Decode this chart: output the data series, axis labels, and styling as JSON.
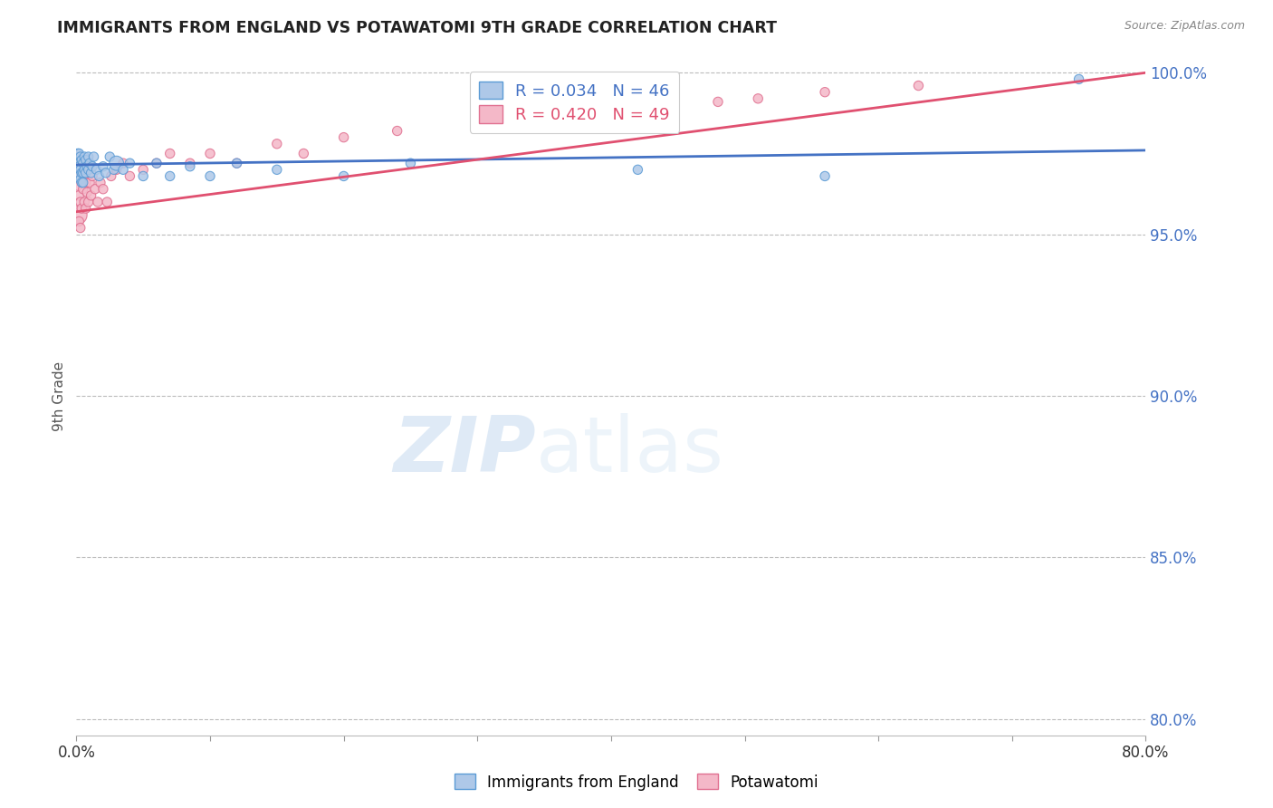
{
  "title": "IMMIGRANTS FROM ENGLAND VS POTAWATOMI 9TH GRADE CORRELATION CHART",
  "source_text": "Source: ZipAtlas.com",
  "ylabel": "9th Grade",
  "legend_blue_label": "Immigrants from England",
  "legend_pink_label": "Potawatomi",
  "R_blue": 0.034,
  "N_blue": 46,
  "R_pink": 0.42,
  "N_pink": 49,
  "xlim": [
    0.0,
    0.8
  ],
  "ylim": [
    0.795,
    1.005
  ],
  "xticks": [
    0.0,
    0.1,
    0.2,
    0.3,
    0.4,
    0.5,
    0.6,
    0.7,
    0.8
  ],
  "xticklabels": [
    "0.0%",
    "",
    "",
    "",
    "",
    "",
    "",
    "",
    "80.0%"
  ],
  "yticks": [
    0.8,
    0.85,
    0.9,
    0.95,
    1.0
  ],
  "yticklabels": [
    "80.0%",
    "85.0%",
    "90.0%",
    "95.0%",
    "100.0%"
  ],
  "blue_color": "#aec8e8",
  "pink_color": "#f4b8c8",
  "blue_edge_color": "#5b9bd5",
  "pink_edge_color": "#e07090",
  "blue_line_color": "#4472c4",
  "pink_line_color": "#e05070",
  "watermark_zip": "ZIP",
  "watermark_atlas": "atlas",
  "background_color": "#ffffff",
  "grid_color": "#bbbbbb",
  "blue_scatter_x": [
    0.001,
    0.001,
    0.002,
    0.002,
    0.002,
    0.003,
    0.003,
    0.003,
    0.004,
    0.004,
    0.004,
    0.005,
    0.005,
    0.005,
    0.006,
    0.006,
    0.007,
    0.007,
    0.008,
    0.009,
    0.009,
    0.01,
    0.011,
    0.012,
    0.013,
    0.015,
    0.017,
    0.02,
    0.022,
    0.025,
    0.028,
    0.03,
    0.035,
    0.04,
    0.05,
    0.06,
    0.07,
    0.085,
    0.1,
    0.12,
    0.15,
    0.2,
    0.25,
    0.42,
    0.56,
    0.75
  ],
  "blue_scatter_y": [
    0.975,
    0.972,
    0.975,
    0.971,
    0.968,
    0.974,
    0.97,
    0.967,
    0.973,
    0.969,
    0.966,
    0.972,
    0.969,
    0.966,
    0.974,
    0.97,
    0.973,
    0.969,
    0.971,
    0.974,
    0.97,
    0.972,
    0.969,
    0.971,
    0.974,
    0.97,
    0.968,
    0.971,
    0.969,
    0.974,
    0.97,
    0.972,
    0.97,
    0.972,
    0.968,
    0.972,
    0.968,
    0.971,
    0.968,
    0.972,
    0.97,
    0.968,
    0.972,
    0.97,
    0.968,
    0.998
  ],
  "blue_scatter_sizes": [
    55,
    55,
    55,
    55,
    55,
    55,
    55,
    55,
    55,
    55,
    55,
    55,
    55,
    55,
    55,
    55,
    55,
    55,
    55,
    55,
    55,
    55,
    55,
    55,
    55,
    55,
    55,
    55,
    55,
    55,
    55,
    130,
    55,
    55,
    55,
    55,
    55,
    55,
    55,
    55,
    55,
    55,
    55,
    55,
    55,
    55
  ],
  "pink_scatter_x": [
    0.001,
    0.001,
    0.001,
    0.002,
    0.002,
    0.002,
    0.003,
    0.003,
    0.003,
    0.004,
    0.004,
    0.005,
    0.005,
    0.006,
    0.006,
    0.007,
    0.007,
    0.008,
    0.009,
    0.01,
    0.011,
    0.012,
    0.014,
    0.016,
    0.018,
    0.02,
    0.023,
    0.026,
    0.03,
    0.035,
    0.04,
    0.05,
    0.06,
    0.07,
    0.085,
    0.1,
    0.12,
    0.15,
    0.17,
    0.2,
    0.24,
    0.3,
    0.35,
    0.39,
    0.44,
    0.48,
    0.51,
    0.56,
    0.63
  ],
  "pink_scatter_y": [
    0.974,
    0.965,
    0.956,
    0.97,
    0.962,
    0.954,
    0.968,
    0.96,
    0.952,
    0.966,
    0.958,
    0.972,
    0.964,
    0.968,
    0.96,
    0.966,
    0.958,
    0.963,
    0.96,
    0.966,
    0.962,
    0.968,
    0.964,
    0.96,
    0.966,
    0.964,
    0.96,
    0.968,
    0.97,
    0.972,
    0.968,
    0.97,
    0.972,
    0.975,
    0.972,
    0.975,
    0.972,
    0.978,
    0.975,
    0.98,
    0.982,
    0.984,
    0.986,
    0.988,
    0.99,
    0.991,
    0.992,
    0.994,
    0.996
  ],
  "pink_scatter_sizes": [
    55,
    55,
    220,
    55,
    55,
    55,
    55,
    55,
    55,
    55,
    55,
    55,
    55,
    55,
    55,
    55,
    55,
    55,
    55,
    55,
    55,
    55,
    55,
    55,
    55,
    55,
    55,
    55,
    55,
    55,
    55,
    55,
    55,
    55,
    55,
    55,
    55,
    55,
    55,
    55,
    55,
    55,
    55,
    55,
    55,
    55,
    55,
    55,
    55
  ]
}
